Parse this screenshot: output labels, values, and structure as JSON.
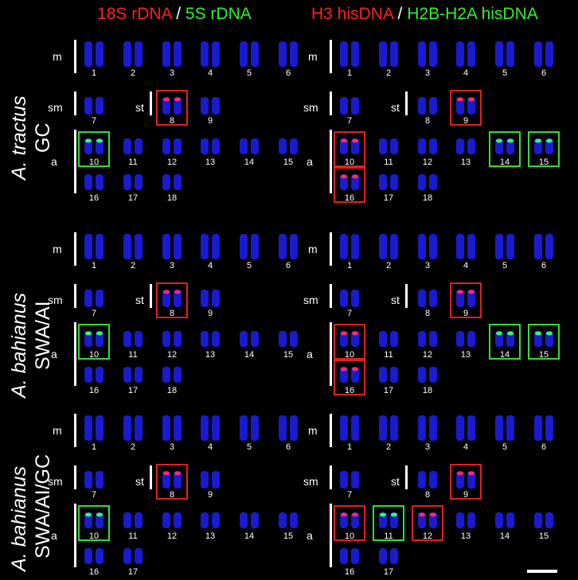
{
  "headers": {
    "left": {
      "a": "18S rDNA",
      "sep": " / ",
      "b": "5S rDNA"
    },
    "right": {
      "a": "H3 hisDNA",
      "sep": " / ",
      "b": "H2B-H2A hisDNA"
    }
  },
  "species": [
    {
      "name": "A. tractus",
      "region": "GC"
    },
    {
      "name": "A. bahianus",
      "region": "SWA/AI"
    },
    {
      "name": "A. bahianus",
      "region": "SWA/AI/GC"
    }
  ],
  "group_labels": {
    "m": "m",
    "sm": "sm",
    "st": "st",
    "a": "a"
  },
  "colors": {
    "chromosome": "#1a1ad0",
    "probe_red": "#ff2a6a",
    "probe_green": "#30ff60"
  },
  "panels": [
    {
      "m": [
        "1",
        "2",
        "3",
        "4",
        "5",
        "6"
      ],
      "sm": [
        "7"
      ],
      "st": [
        "8",
        "9"
      ],
      "a": [
        "10",
        "11",
        "12",
        "13",
        "14",
        "15",
        "16",
        "17",
        "18"
      ]
    },
    {
      "m": [
        "1",
        "2",
        "3",
        "4",
        "5",
        "6"
      ],
      "sm": [
        "7"
      ],
      "st": [
        "8",
        "9"
      ],
      "a": [
        "10",
        "11",
        "12",
        "13",
        "14",
        "15",
        "16",
        "17",
        "18"
      ]
    },
    {
      "m": [
        "1",
        "2",
        "3",
        "4",
        "5",
        "6"
      ],
      "sm": [
        "7"
      ],
      "st": [
        "8",
        "9"
      ],
      "a": [
        "10",
        "11",
        "12",
        "13",
        "14",
        "15",
        "16",
        "17",
        "18"
      ]
    },
    {
      "m": [
        "1",
        "2",
        "3",
        "4",
        "5",
        "6"
      ],
      "sm": [
        "7"
      ],
      "st": [
        "8",
        "9"
      ],
      "a": [
        "10",
        "11",
        "12",
        "13",
        "14",
        "15",
        "16",
        "17",
        "18"
      ]
    },
    {
      "m": [
        "1",
        "2",
        "3",
        "4",
        "5",
        "6"
      ],
      "sm": [
        "7"
      ],
      "st": [
        "8",
        "9"
      ],
      "a": [
        "10",
        "11",
        "12",
        "13",
        "14",
        "15",
        "16",
        "17"
      ]
    },
    {
      "m": [
        "1",
        "2",
        "3",
        "4",
        "5",
        "6"
      ],
      "sm": [
        "7"
      ],
      "st": [
        "8",
        "9"
      ],
      "a": [
        "10",
        "11",
        "12",
        "13",
        "14",
        "15",
        "16",
        "17"
      ]
    }
  ]
}
